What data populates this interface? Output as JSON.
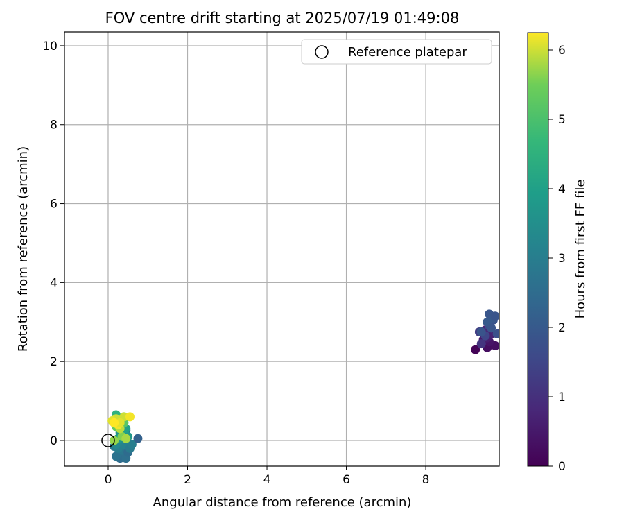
{
  "chart_data": {
    "type": "scatter",
    "title": "FOV centre drift starting at 2025/07/19 01:49:08",
    "xlabel": "Angular distance from reference (arcmin)",
    "ylabel": "Rotation from reference (arcmin)",
    "xlim": [
      -1.1,
      9.85
    ],
    "ylim": [
      -0.65,
      10.35
    ],
    "xticks": [
      0,
      2,
      4,
      6,
      8
    ],
    "yticks": [
      0,
      2,
      4,
      6,
      8,
      10
    ],
    "grid": true,
    "legend": {
      "position": "upper-right",
      "entries": [
        "Reference platepar"
      ]
    },
    "reference_point": {
      "x": 0,
      "y": 0,
      "label": "Reference platepar",
      "marker": "open-circle"
    },
    "colorbar": {
      "label": "Hours from first FF file",
      "min": 0,
      "max": 6.25,
      "ticks": [
        0,
        1,
        2,
        3,
        4,
        5,
        6
      ],
      "colormap": "viridis"
    },
    "series": [
      {
        "x": [
          9.25,
          9.55,
          9.75,
          9.6,
          9.45,
          9.55,
          9.65,
          9.5,
          9.4,
          9.35,
          9.5,
          9.6,
          9.8,
          9.7,
          9.4,
          9.6,
          9.7,
          9.55,
          9.65,
          9.75,
          0.3,
          0.45,
          0.2,
          0.4,
          0.35,
          0.5,
          0.15,
          0.25,
          0.4,
          0.55,
          0.6,
          0.75,
          0.45,
          0.3,
          0.2,
          0.35,
          0.4,
          0.3,
          0.5,
          0.25,
          0.35,
          0.45,
          0.15,
          0.3,
          0.2,
          0.4,
          0.3,
          0.25,
          0.4,
          0.2,
          0.35,
          0.15,
          0.45,
          0.3,
          0.2,
          0.1,
          0.25,
          0.4,
          0.3,
          0.55,
          0.15
        ],
        "y": [
          2.3,
          2.35,
          2.4,
          2.5,
          2.55,
          2.6,
          2.7,
          2.8,
          2.45,
          2.75,
          2.65,
          2.9,
          2.7,
          3.05,
          2.75,
          3.2,
          3.1,
          3.0,
          2.85,
          3.15,
          -0.45,
          -0.45,
          -0.4,
          -0.3,
          -0.25,
          -0.3,
          -0.15,
          -0.2,
          -0.1,
          -0.2,
          -0.1,
          0.05,
          0.25,
          0.0,
          -0.1,
          0.05,
          0.15,
          0.2,
          0.1,
          0.05,
          0.25,
          0.3,
          0.45,
          0.5,
          0.65,
          0.6,
          0.55,
          0.4,
          0.45,
          0.35,
          0.1,
          0.0,
          0.05,
          0.3,
          0.55,
          0.5,
          0.4,
          0.6,
          0.45,
          0.6,
          0.45
        ],
        "hours": [
          0.05,
          0.25,
          0.3,
          0.4,
          0.5,
          0.6,
          0.7,
          0.8,
          1.1,
          1.3,
          1.5,
          1.6,
          1.75,
          1.8,
          1.85,
          1.9,
          1.95,
          2.0,
          1.9,
          1.85,
          2.5,
          2.6,
          2.7,
          2.6,
          2.8,
          2.5,
          2.9,
          3.0,
          3.1,
          2.9,
          3.0,
          2.2,
          2.1,
          3.2,
          3.3,
          3.4,
          3.5,
          3.6,
          3.7,
          3.8,
          3.9,
          4.0,
          4.2,
          4.4,
          4.5,
          4.6,
          4.8,
          5.0,
          5.2,
          5.4,
          5.6,
          5.7,
          5.8,
          5.9,
          6.0,
          6.1,
          6.2,
          6.0,
          6.1,
          6.2,
          6.25
        ]
      }
    ]
  }
}
